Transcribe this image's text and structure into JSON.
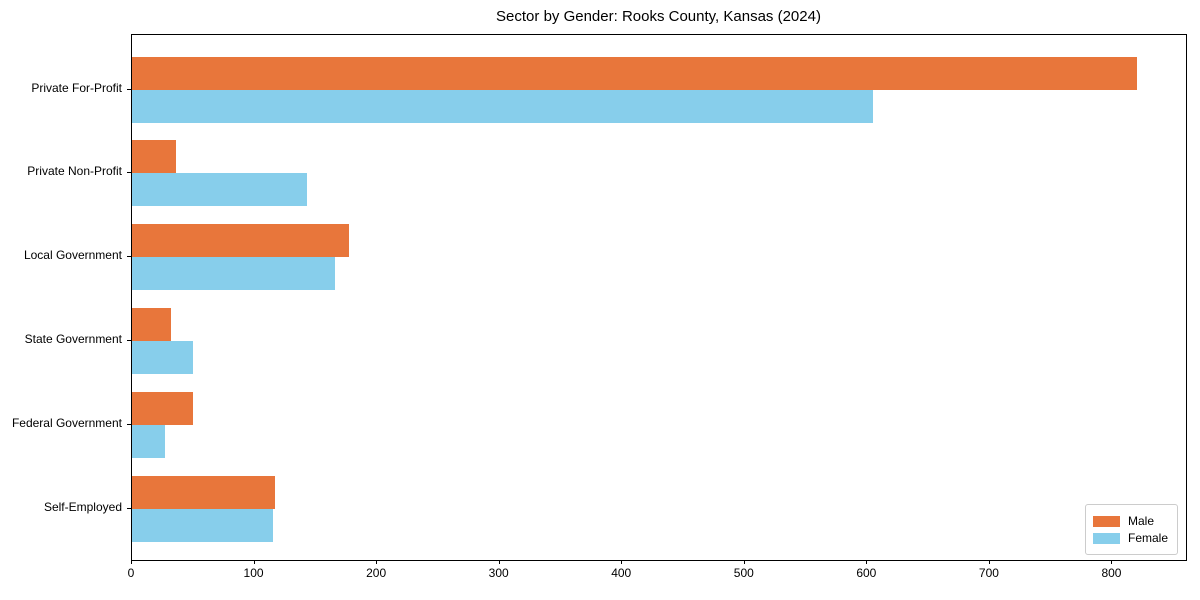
{
  "chart_data": {
    "type": "bar",
    "orientation": "horizontal",
    "title": "Sector by Gender: Rooks County, Kansas (2024)",
    "categories": [
      "Private For-Profit",
      "Private Non-Profit",
      "Local Government",
      "State Government",
      "Federal Government",
      "Self-Employed"
    ],
    "series": [
      {
        "name": "Male",
        "color": "#e8763b",
        "values": [
          820,
          36,
          177,
          32,
          50,
          117
        ]
      },
      {
        "name": "Female",
        "color": "#87ceeb",
        "values": [
          605,
          143,
          166,
          50,
          27,
          115
        ]
      }
    ],
    "xticks": [
      0,
      100,
      200,
      300,
      400,
      500,
      600,
      700,
      800
    ],
    "xlim": [
      0,
      860
    ],
    "xlabel": "",
    "ylabel": "",
    "grid": false,
    "legend_position": "lower right",
    "colors": {
      "male": "#e8763b",
      "female": "#87ceeb",
      "spine": "#000000",
      "text": "#000000",
      "legend_border": "#cccccc"
    }
  }
}
